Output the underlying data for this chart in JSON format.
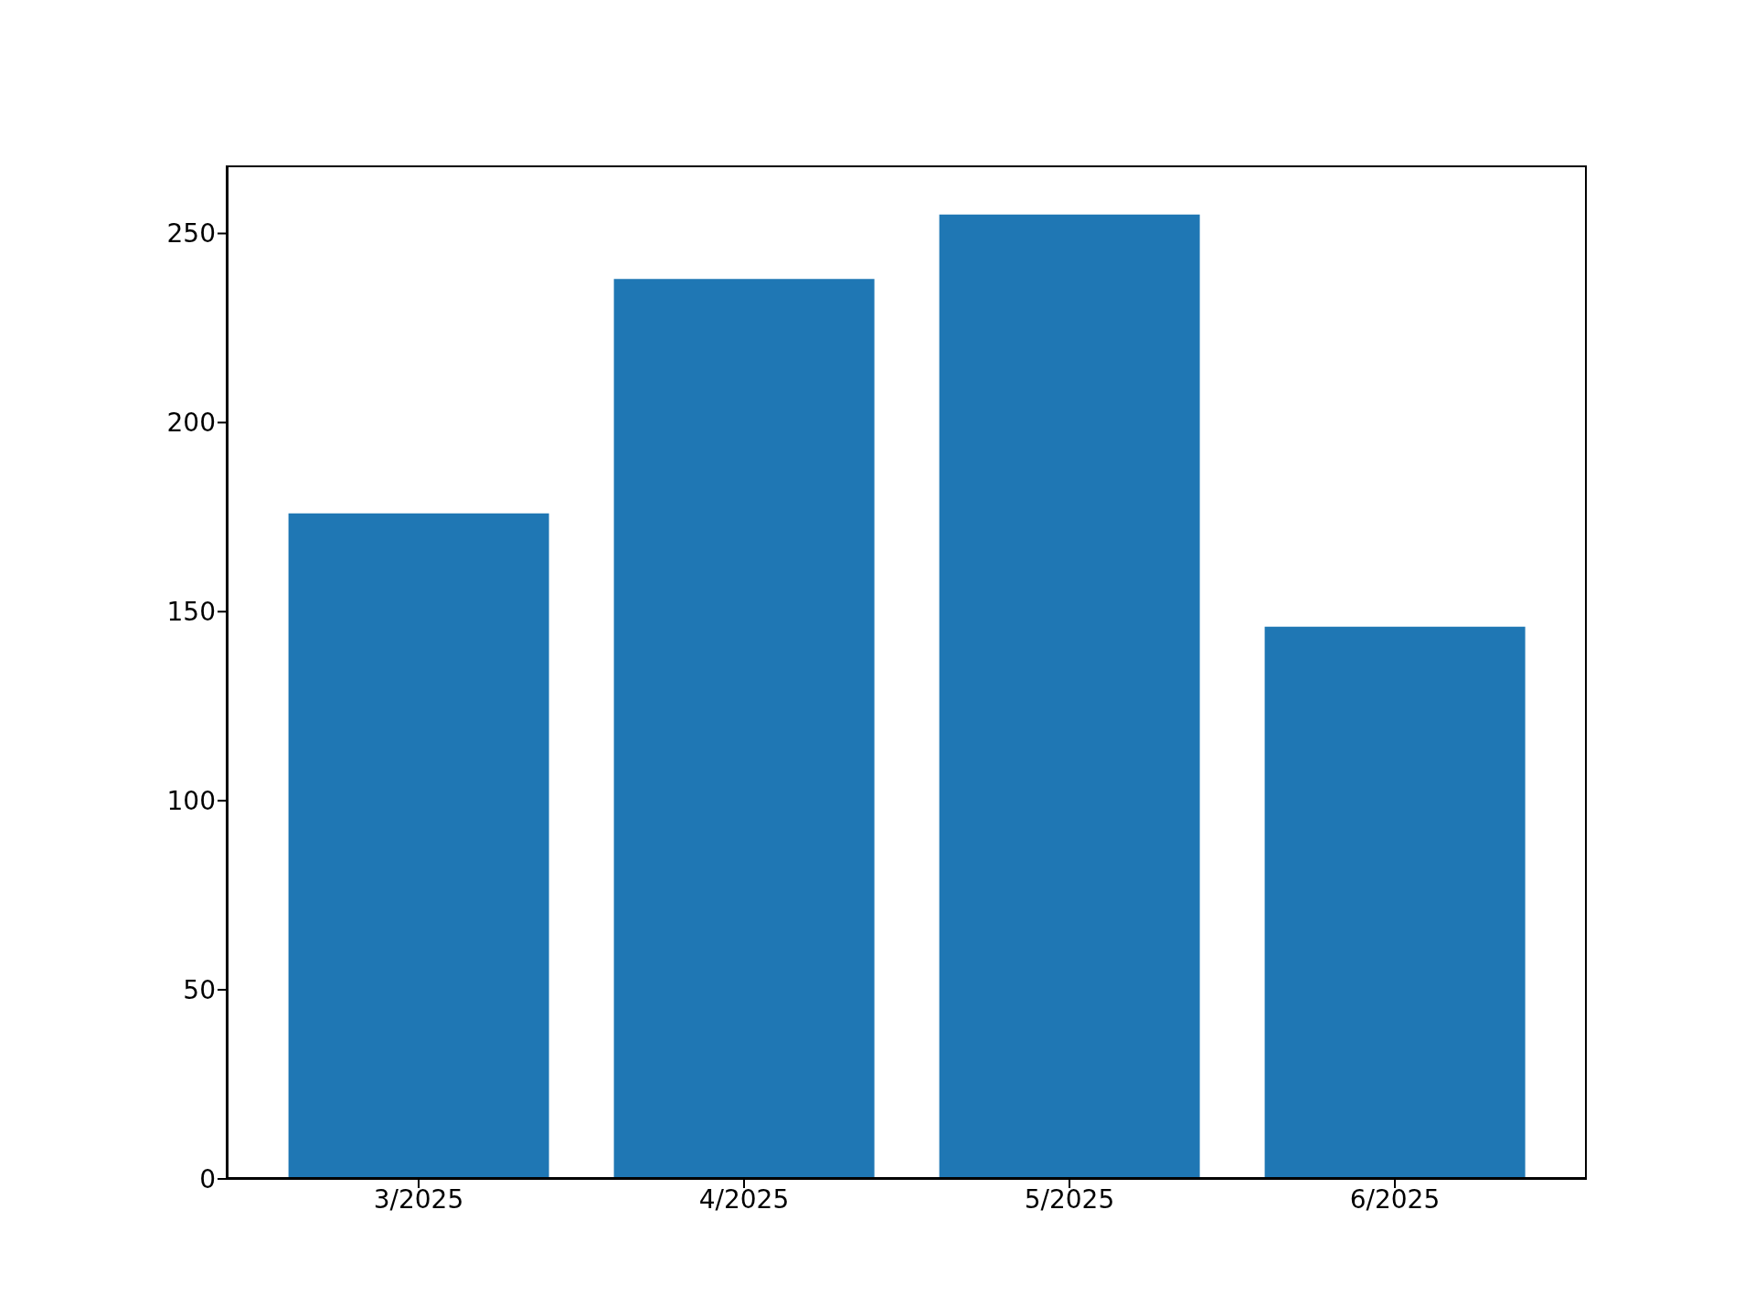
{
  "chart_data": {
    "type": "bar",
    "categories": [
      "3/2025",
      "4/2025",
      "5/2025",
      "6/2025"
    ],
    "values": [
      176,
      238,
      255,
      146
    ],
    "color": "#1f77b4",
    "ylim": [
      0,
      268
    ],
    "yticks": [
      0,
      50,
      100,
      150,
      200,
      250
    ],
    "grid": false
  }
}
